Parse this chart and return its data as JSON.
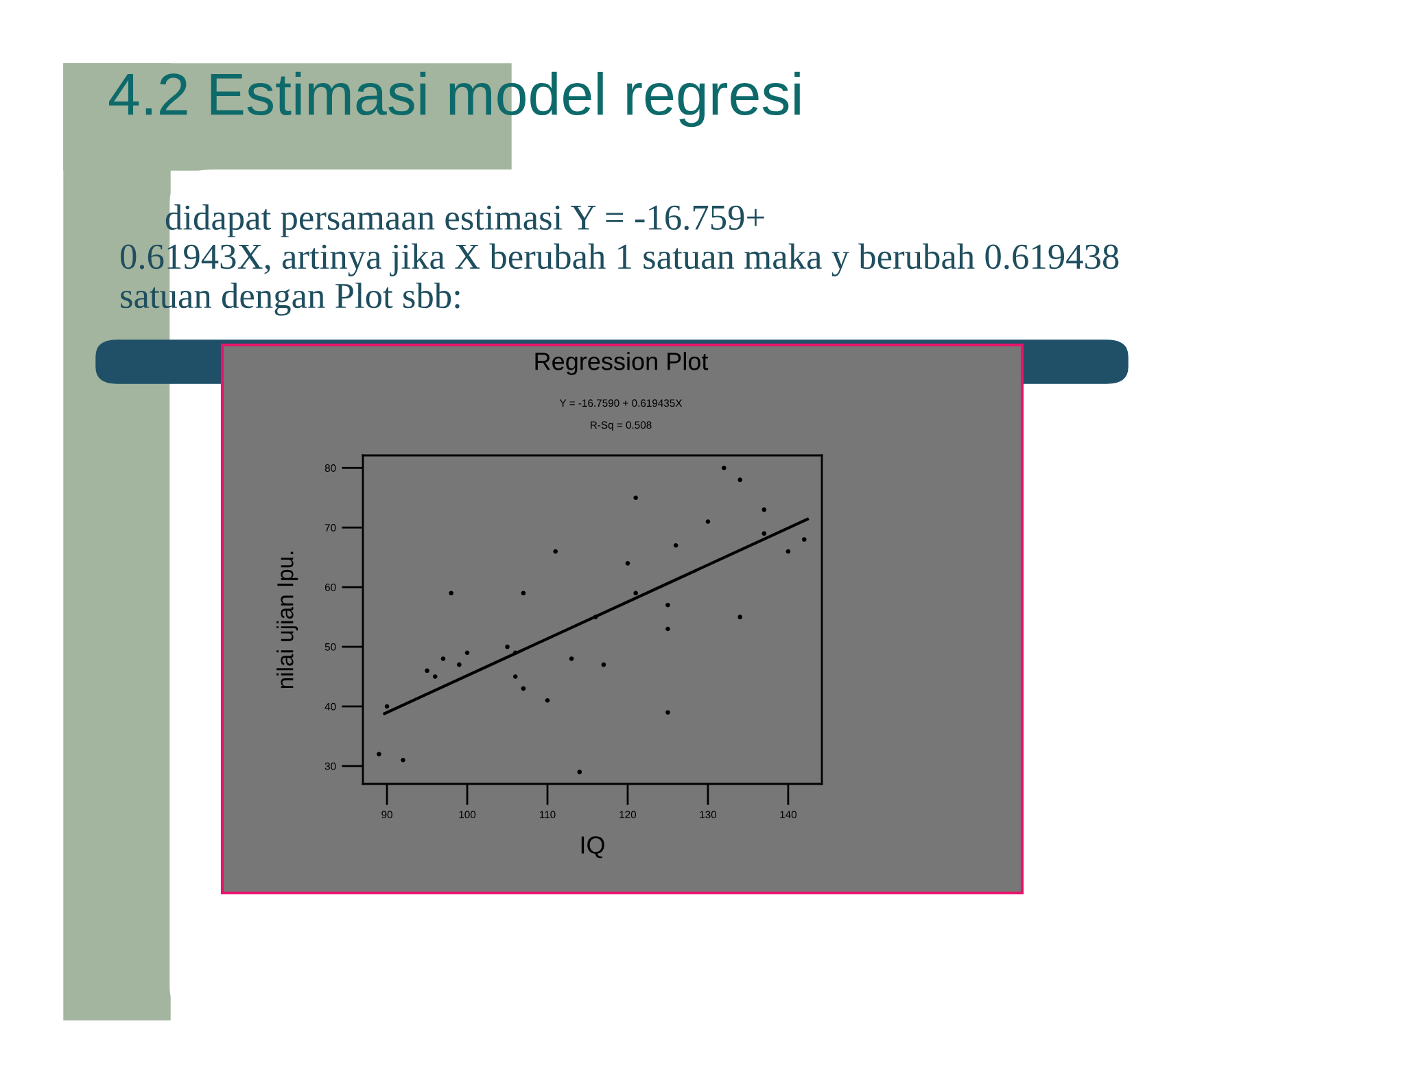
{
  "chart_data": {
    "type": "scatter",
    "title": "Regression Plot",
    "subtitle": "Y = -16.7590 + 0.619435X\nR-Sq = 0.508",
    "xlabel": "IQ",
    "ylabel": "nilai ujian Ipu.",
    "annotations": [
      "4.2 Estimasi model regresi",
      "didapat persamaan estimasi Y = -16.759+\n0.61943X, artinya jika X berubah 1 satuan maka y berubah 0.619438\nsatuan dengan Plot sbb:"
    ],
    "series": [
      {
        "color": "#000000",
        "marker": "circle",
        "x": [
          89,
          90,
          92,
          95,
          96,
          97,
          98,
          99,
          100,
          105,
          106,
          106,
          107,
          107,
          110,
          111,
          113,
          114,
          116,
          117,
          120,
          121,
          121,
          125,
          125,
          125,
          126,
          130,
          132,
          134,
          134,
          137,
          137,
          140,
          142
        ],
        "values": [
          32,
          40,
          31,
          46,
          45,
          48,
          59,
          47,
          49,
          50,
          49,
          45,
          59,
          43,
          41,
          66,
          48,
          29,
          55,
          47,
          64,
          75,
          59,
          57,
          53,
          39,
          67,
          71,
          80,
          78,
          55,
          73,
          69,
          66,
          68
        ]
      },
      {
        "type": "line",
        "color": "#000000",
        "marker": "none",
        "line_style": "solid",
        "x": [
          89.7,
          142.4
        ],
        "values": [
          38.8,
          71.4
        ]
      }
    ],
    "xlim": [
      87,
      144.2
    ],
    "ylim": [
      27,
      82.1
    ],
    "xticks": [
      90,
      100,
      110,
      120,
      130,
      140
    ],
    "yticks": [
      30,
      40,
      50,
      60,
      70,
      80
    ],
    "grid": false,
    "legend": false
  }
}
